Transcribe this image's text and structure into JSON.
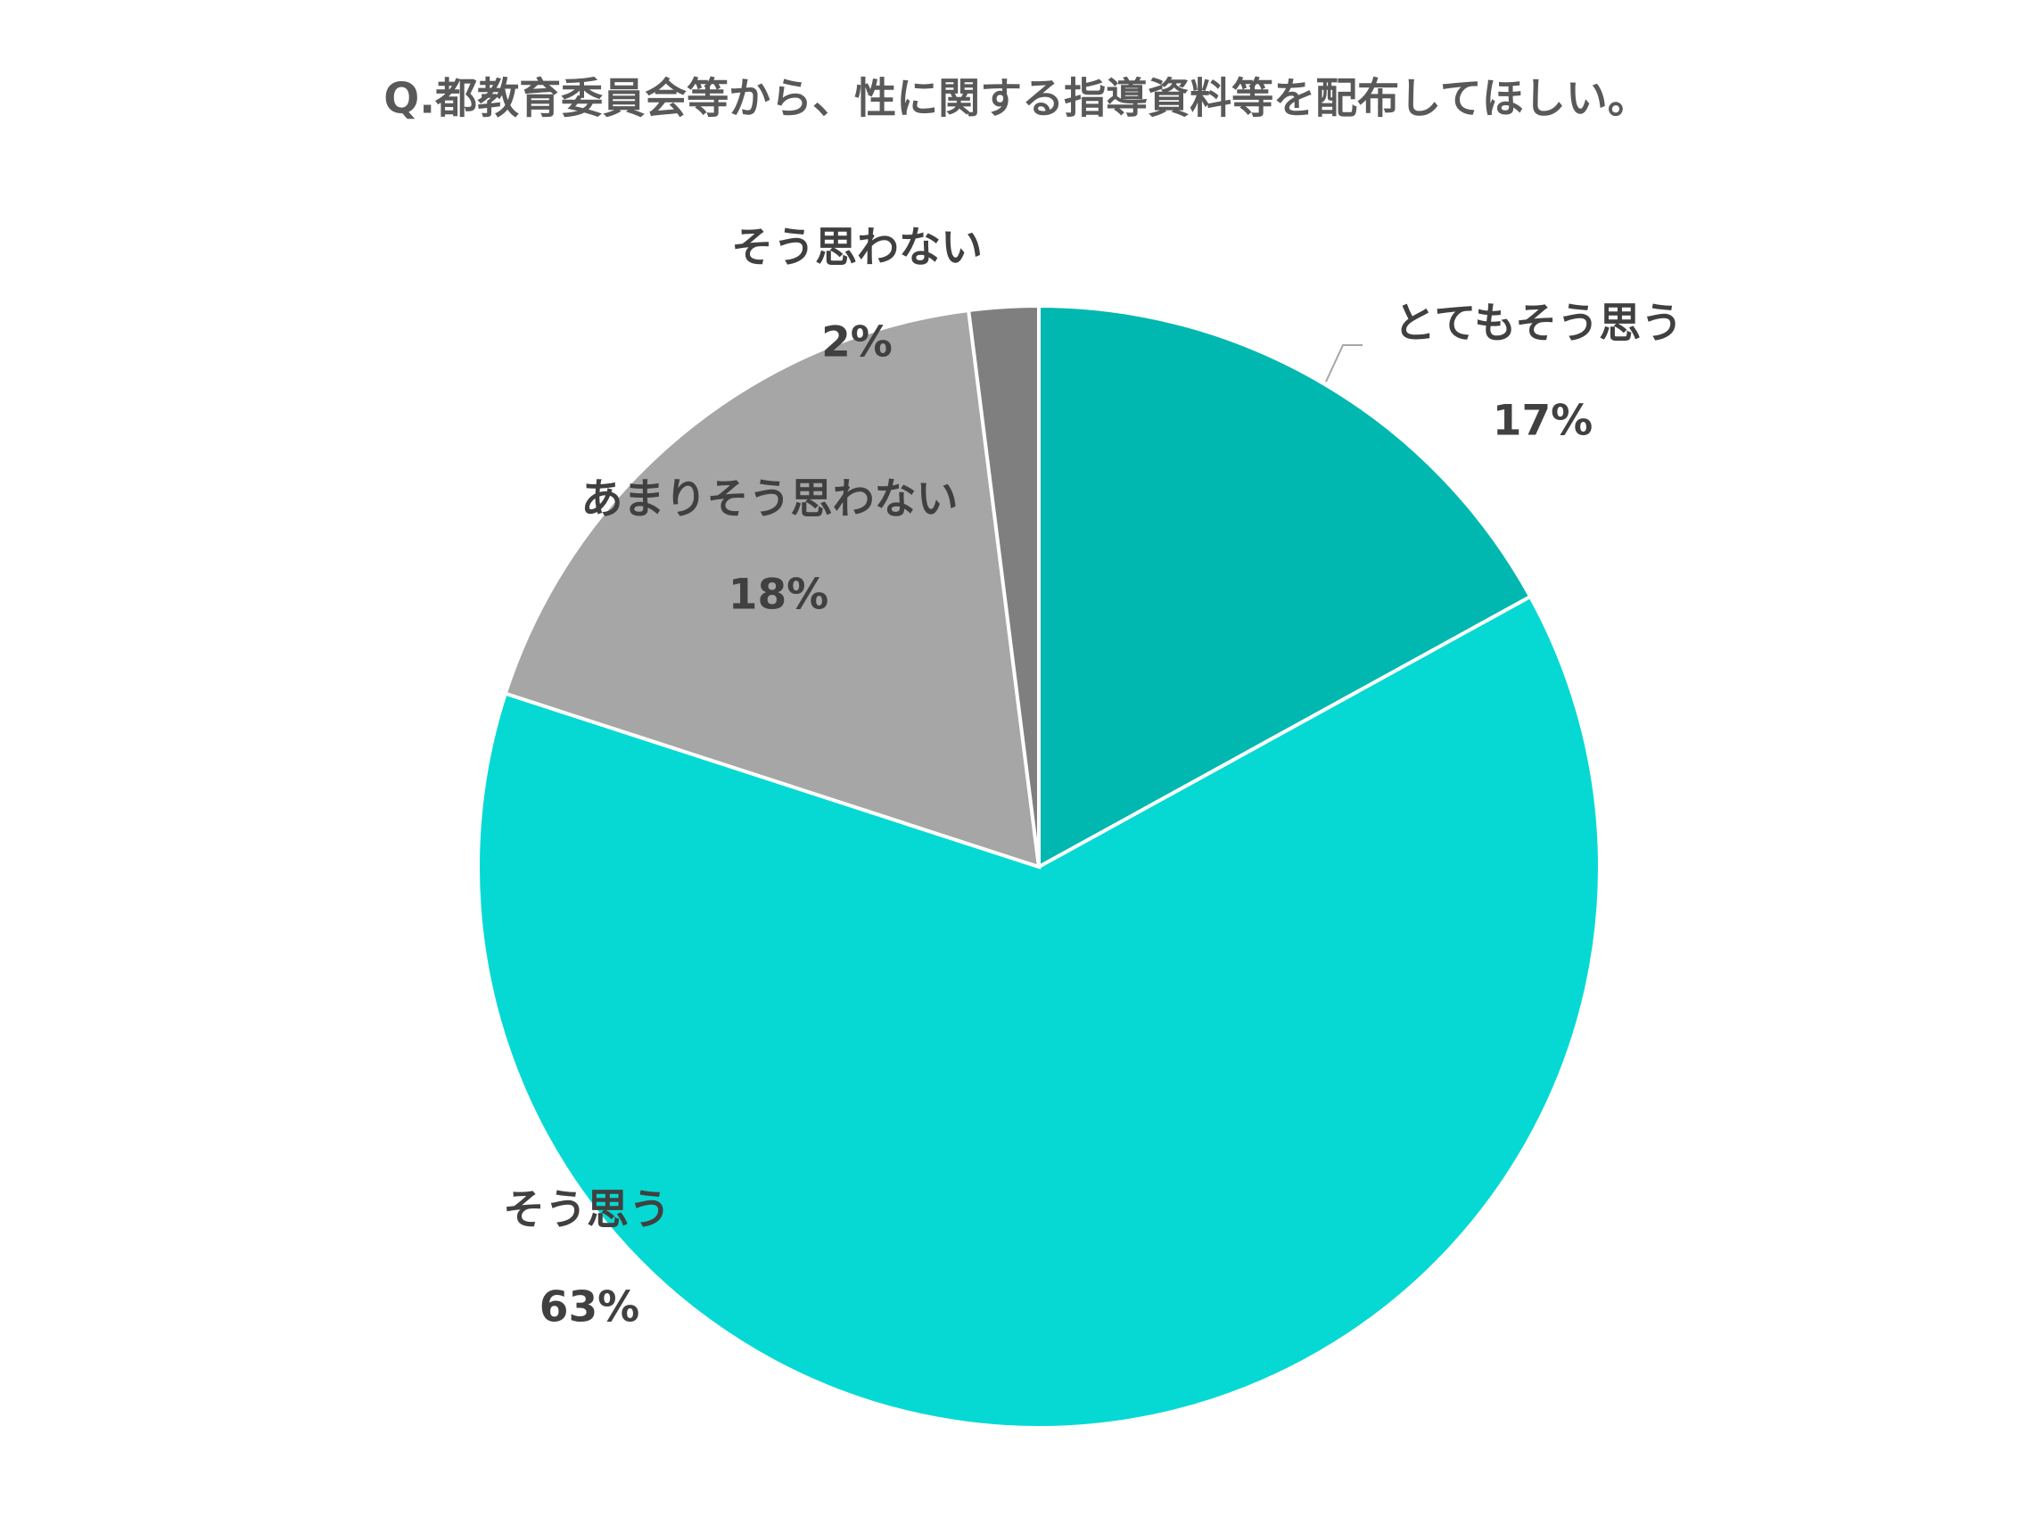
{
  "chart_data": {
    "type": "pie",
    "title": "Q.都教育委員会等から、性に関する指導資料等を配布してほしい。",
    "categories": [
      "とてもそう思う",
      "そう思う",
      "あまりそう思わない",
      "そう思わない"
    ],
    "values": [
      17,
      63,
      18,
      2
    ],
    "value_labels": [
      "17%",
      "63%",
      "18%",
      "2%"
    ],
    "colors": [
      "#00b8b0",
      "#06d9d3",
      "#a6a6a6",
      "#7f7f7f"
    ]
  }
}
